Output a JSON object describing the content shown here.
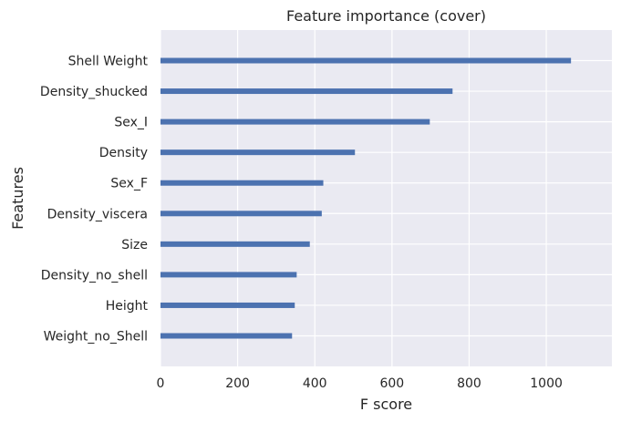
{
  "chart_data": {
    "type": "bar",
    "orientation": "horizontal",
    "title": "Feature importance (cover)",
    "xlabel": "F score",
    "ylabel": "Features",
    "categories": [
      "Shell Weight",
      "Density_shucked",
      "Sex_I",
      "Density",
      "Sex_F",
      "Density_viscera",
      "Size",
      "Density_no_shell",
      "Height",
      "Weight_no_Shell"
    ],
    "values": [
      1064,
      757,
      698,
      504,
      422,
      418,
      387,
      353,
      348,
      341
    ],
    "xlim": [
      0,
      1170
    ],
    "xticks": [
      0,
      200,
      400,
      600,
      800,
      1000
    ],
    "xtick_labels": [
      "0",
      "200",
      "400",
      "600",
      "800",
      "1000"
    ],
    "grid": true,
    "colors": {
      "bar": "#4c72b0",
      "background": "#eaeaf2",
      "grid": "#ffffff"
    }
  }
}
